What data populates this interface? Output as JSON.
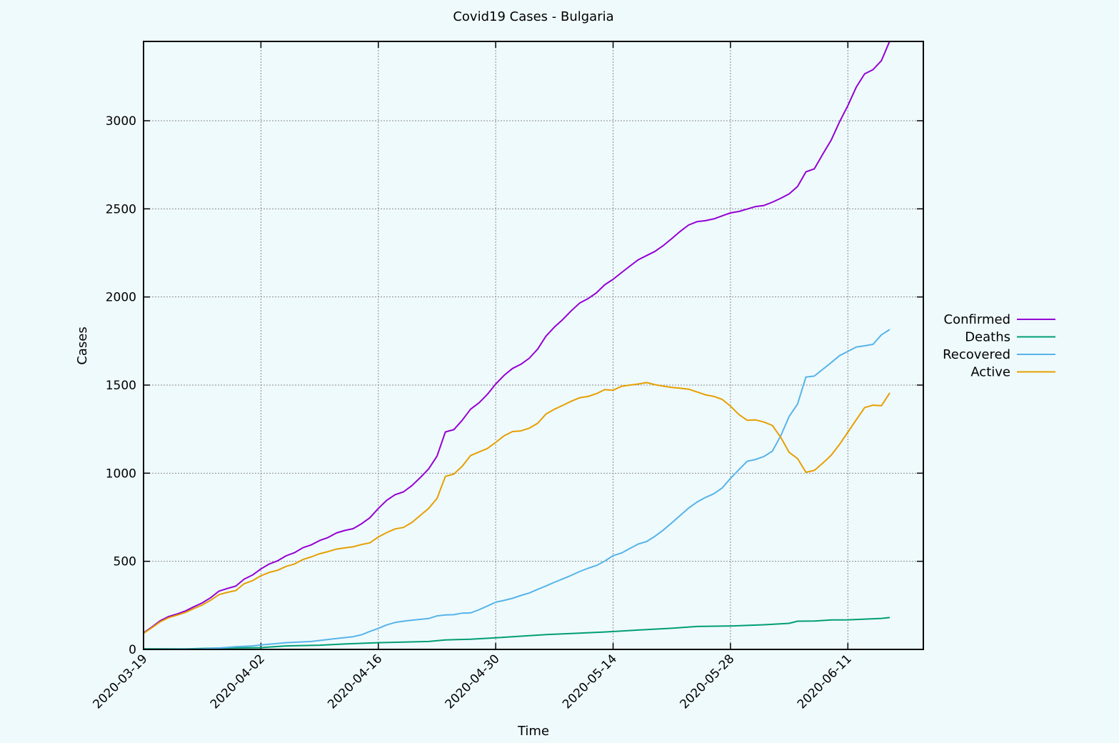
{
  "chart_data": {
    "type": "line",
    "title": "Covid19 Cases - Bulgaria",
    "xlabel": "Time",
    "ylabel": "Cases",
    "xlim": [
      "2020-03-19",
      "2020-06-20"
    ],
    "ylim": [
      0,
      3450
    ],
    "yticks": [
      0,
      500,
      1000,
      1500,
      2000,
      2500,
      3000
    ],
    "xticks": [
      "2020-03-19",
      "2020-04-02",
      "2020-04-16",
      "2020-04-30",
      "2020-05-14",
      "2020-05-28",
      "2020-06-11"
    ],
    "grid": true,
    "legend_position": "right",
    "series": [
      {
        "name": "Confirmed",
        "color": "#9400d3",
        "points": [
          [
            "2020-03-19",
            94
          ],
          [
            "2020-03-20",
            127
          ],
          [
            "2020-03-21",
            163
          ],
          [
            "2020-03-22",
            187
          ],
          [
            "2020-03-23",
            201
          ],
          [
            "2020-03-24",
            218
          ],
          [
            "2020-03-25",
            242
          ],
          [
            "2020-03-26",
            264
          ],
          [
            "2020-03-27",
            293
          ],
          [
            "2020-03-28",
            331
          ],
          [
            "2020-03-29",
            346
          ],
          [
            "2020-03-30",
            359
          ],
          [
            "2020-03-31",
            399
          ],
          [
            "2020-04-01",
            422
          ],
          [
            "2020-04-02",
            457
          ],
          [
            "2020-04-03",
            485
          ],
          [
            "2020-04-04",
            503
          ],
          [
            "2020-04-05",
            531
          ],
          [
            "2020-04-06",
            549
          ],
          [
            "2020-04-07",
            577
          ],
          [
            "2020-04-08",
            593
          ],
          [
            "2020-04-09",
            618
          ],
          [
            "2020-04-10",
            635
          ],
          [
            "2020-04-11",
            661
          ],
          [
            "2020-04-12",
            675
          ],
          [
            "2020-04-13",
            685
          ],
          [
            "2020-04-14",
            713
          ],
          [
            "2020-04-15",
            747
          ],
          [
            "2020-04-16",
            800
          ],
          [
            "2020-04-17",
            846
          ],
          [
            "2020-04-18",
            878
          ],
          [
            "2020-04-19",
            894
          ],
          [
            "2020-04-20",
            929
          ],
          [
            "2020-04-21",
            975
          ],
          [
            "2020-04-22",
            1024
          ],
          [
            "2020-04-23",
            1097
          ],
          [
            "2020-04-24",
            1234
          ],
          [
            "2020-04-25",
            1247
          ],
          [
            "2020-04-26",
            1300
          ],
          [
            "2020-04-27",
            1363
          ],
          [
            "2020-04-28",
            1399
          ],
          [
            "2020-04-29",
            1447
          ],
          [
            "2020-04-30",
            1506
          ],
          [
            "2020-05-01",
            1555
          ],
          [
            "2020-05-02",
            1594
          ],
          [
            "2020-05-03",
            1618
          ],
          [
            "2020-05-04",
            1652
          ],
          [
            "2020-05-05",
            1704
          ],
          [
            "2020-05-06",
            1778
          ],
          [
            "2020-05-07",
            1829
          ],
          [
            "2020-05-08",
            1872
          ],
          [
            "2020-05-09",
            1921
          ],
          [
            "2020-05-10",
            1965
          ],
          [
            "2020-05-11",
            1990
          ],
          [
            "2020-05-12",
            2023
          ],
          [
            "2020-05-13",
            2069
          ],
          [
            "2020-05-14",
            2100
          ],
          [
            "2020-05-15",
            2138
          ],
          [
            "2020-05-16",
            2175
          ],
          [
            "2020-05-17",
            2211
          ],
          [
            "2020-05-18",
            2235
          ],
          [
            "2020-05-19",
            2259
          ],
          [
            "2020-05-20",
            2292
          ],
          [
            "2020-05-21",
            2331
          ],
          [
            "2020-05-22",
            2372
          ],
          [
            "2020-05-23",
            2408
          ],
          [
            "2020-05-24",
            2427
          ],
          [
            "2020-05-25",
            2433
          ],
          [
            "2020-05-26",
            2443
          ],
          [
            "2020-05-27",
            2460
          ],
          [
            "2020-05-28",
            2477
          ],
          [
            "2020-05-29",
            2485
          ],
          [
            "2020-05-30",
            2499
          ],
          [
            "2020-05-31",
            2513
          ],
          [
            "2020-06-01",
            2519
          ],
          [
            "2020-06-02",
            2538
          ],
          [
            "2020-06-03",
            2560
          ],
          [
            "2020-06-04",
            2585
          ],
          [
            "2020-06-05",
            2627
          ],
          [
            "2020-06-06",
            2710
          ],
          [
            "2020-06-07",
            2727
          ],
          [
            "2020-06-08",
            2810
          ],
          [
            "2020-06-09",
            2889
          ],
          [
            "2020-06-10",
            2993
          ],
          [
            "2020-06-11",
            3086
          ],
          [
            "2020-06-12",
            3191
          ],
          [
            "2020-06-13",
            3266
          ],
          [
            "2020-06-14",
            3290
          ],
          [
            "2020-06-15",
            3341
          ],
          [
            "2020-06-16",
            3453
          ]
        ]
      },
      {
        "name": "Deaths",
        "color": "#009e73",
        "points": [
          [
            "2020-03-19",
            3
          ],
          [
            "2020-03-24",
            3
          ],
          [
            "2020-03-28",
            8
          ],
          [
            "2020-04-02",
            10
          ],
          [
            "2020-04-05",
            20
          ],
          [
            "2020-04-09",
            24
          ],
          [
            "2020-04-12",
            31
          ],
          [
            "2020-04-16",
            38
          ],
          [
            "2020-04-22",
            45
          ],
          [
            "2020-04-24",
            54
          ],
          [
            "2020-04-27",
            58
          ],
          [
            "2020-04-30",
            66
          ],
          [
            "2020-05-03",
            75
          ],
          [
            "2020-05-06",
            84
          ],
          [
            "2020-05-09",
            90
          ],
          [
            "2020-05-13",
            99
          ],
          [
            "2020-05-17",
            110
          ],
          [
            "2020-05-21",
            120
          ],
          [
            "2020-05-24",
            130
          ],
          [
            "2020-05-28",
            133
          ],
          [
            "2020-06-01",
            140
          ],
          [
            "2020-06-04",
            148
          ],
          [
            "2020-06-05",
            160
          ],
          [
            "2020-06-07",
            161
          ],
          [
            "2020-06-09",
            167
          ],
          [
            "2020-06-11",
            168
          ],
          [
            "2020-06-13",
            172
          ],
          [
            "2020-06-15",
            176
          ],
          [
            "2020-06-16",
            181
          ]
        ]
      },
      {
        "name": "Recovered",
        "color": "#56b4e9",
        "points": [
          [
            "2020-03-19",
            0
          ],
          [
            "2020-03-26",
            3
          ],
          [
            "2020-03-28",
            8
          ],
          [
            "2020-03-30",
            15
          ],
          [
            "2020-04-01",
            20
          ],
          [
            "2020-04-02",
            25
          ],
          [
            "2020-04-05",
            38
          ],
          [
            "2020-04-08",
            45
          ],
          [
            "2020-04-11",
            62
          ],
          [
            "2020-04-13",
            72
          ],
          [
            "2020-04-14",
            83
          ],
          [
            "2020-04-15",
            102
          ],
          [
            "2020-04-16",
            119
          ],
          [
            "2020-04-17",
            139
          ],
          [
            "2020-04-18",
            153
          ],
          [
            "2020-04-19",
            160
          ],
          [
            "2020-04-20",
            166
          ],
          [
            "2020-04-22",
            175
          ],
          [
            "2020-04-23",
            190
          ],
          [
            "2020-04-24",
            196
          ],
          [
            "2020-04-25",
            197
          ],
          [
            "2020-04-26",
            206
          ],
          [
            "2020-04-27",
            207
          ],
          [
            "2020-04-28",
            225
          ],
          [
            "2020-04-29",
            246
          ],
          [
            "2020-04-30",
            268
          ],
          [
            "2020-05-01",
            278
          ],
          [
            "2020-05-02",
            290
          ],
          [
            "2020-05-03",
            306
          ],
          [
            "2020-05-04",
            320
          ],
          [
            "2020-05-05",
            341
          ],
          [
            "2020-05-06",
            360
          ],
          [
            "2020-05-07",
            381
          ],
          [
            "2020-05-08",
            400
          ],
          [
            "2020-05-09",
            420
          ],
          [
            "2020-05-10",
            442
          ],
          [
            "2020-05-11",
            460
          ],
          [
            "2020-05-12",
            476
          ],
          [
            "2020-05-13",
            501
          ],
          [
            "2020-05-14",
            532
          ],
          [
            "2020-05-15",
            547
          ],
          [
            "2020-05-16",
            573
          ],
          [
            "2020-05-17",
            598
          ],
          [
            "2020-05-18",
            612
          ],
          [
            "2020-05-19",
            642
          ],
          [
            "2020-05-20",
            678
          ],
          [
            "2020-05-21",
            718
          ],
          [
            "2020-05-22",
            760
          ],
          [
            "2020-05-23",
            802
          ],
          [
            "2020-05-24",
            836
          ],
          [
            "2020-05-25",
            862
          ],
          [
            "2020-05-26",
            883
          ],
          [
            "2020-05-27",
            916
          ],
          [
            "2020-05-28",
            970
          ],
          [
            "2020-05-29",
            1020
          ],
          [
            "2020-05-30",
            1068
          ],
          [
            "2020-05-31",
            1078
          ],
          [
            "2020-06-01",
            1095
          ],
          [
            "2020-06-02",
            1125
          ],
          [
            "2020-06-03",
            1213
          ],
          [
            "2020-06-04",
            1322
          ],
          [
            "2020-06-05",
            1393
          ],
          [
            "2020-06-06",
            1546
          ],
          [
            "2020-06-07",
            1551
          ],
          [
            "2020-06-08",
            1589
          ],
          [
            "2020-06-09",
            1627
          ],
          [
            "2020-06-10",
            1667
          ],
          [
            "2020-06-11",
            1691
          ],
          [
            "2020-06-12",
            1716
          ],
          [
            "2020-06-13",
            1723
          ],
          [
            "2020-06-14",
            1731
          ],
          [
            "2020-06-15",
            1785
          ],
          [
            "2020-06-16",
            1816
          ]
        ]
      },
      {
        "name": "Active",
        "color": "#e69f00",
        "points": [
          [
            "2020-03-19",
            91
          ],
          [
            "2020-03-20",
            123
          ],
          [
            "2020-03-21",
            157
          ],
          [
            "2020-03-22",
            180
          ],
          [
            "2020-03-23",
            194
          ],
          [
            "2020-03-24",
            210
          ],
          [
            "2020-03-25",
            232
          ],
          [
            "2020-03-26",
            252
          ],
          [
            "2020-03-27",
            279
          ],
          [
            "2020-03-28",
            311
          ],
          [
            "2020-03-29",
            324
          ],
          [
            "2020-03-30",
            334
          ],
          [
            "2020-03-31",
            373
          ],
          [
            "2020-04-01",
            390
          ],
          [
            "2020-04-02",
            418
          ],
          [
            "2020-04-03",
            437
          ],
          [
            "2020-04-04",
            449
          ],
          [
            "2020-04-05",
            471
          ],
          [
            "2020-04-06",
            485
          ],
          [
            "2020-04-07",
            510
          ],
          [
            "2020-04-08",
            525
          ],
          [
            "2020-04-09",
            543
          ],
          [
            "2020-04-10",
            555
          ],
          [
            "2020-04-11",
            569
          ],
          [
            "2020-04-12",
            576
          ],
          [
            "2020-04-13",
            582
          ],
          [
            "2020-04-14",
            595
          ],
          [
            "2020-04-15",
            605
          ],
          [
            "2020-04-16",
            638
          ],
          [
            "2020-04-17",
            663
          ],
          [
            "2020-04-18",
            684
          ],
          [
            "2020-04-19",
            692
          ],
          [
            "2020-04-20",
            720
          ],
          [
            "2020-04-21",
            760
          ],
          [
            "2020-04-22",
            800
          ],
          [
            "2020-04-23",
            857
          ],
          [
            "2020-04-24",
            982
          ],
          [
            "2020-04-25",
            995
          ],
          [
            "2020-04-26",
            1039
          ],
          [
            "2020-04-27",
            1100
          ],
          [
            "2020-04-28",
            1120
          ],
          [
            "2020-04-29",
            1140
          ],
          [
            "2020-04-30",
            1175
          ],
          [
            "2020-05-01",
            1212
          ],
          [
            "2020-05-02",
            1236
          ],
          [
            "2020-05-03",
            1240
          ],
          [
            "2020-05-04",
            1255
          ],
          [
            "2020-05-05",
            1283
          ],
          [
            "2020-05-06",
            1336
          ],
          [
            "2020-05-07",
            1363
          ],
          [
            "2020-05-08",
            1385
          ],
          [
            "2020-05-09",
            1408
          ],
          [
            "2020-05-10",
            1428
          ],
          [
            "2020-05-11",
            1435
          ],
          [
            "2020-05-12",
            1451
          ],
          [
            "2020-05-13",
            1474
          ],
          [
            "2020-05-14",
            1471
          ],
          [
            "2020-05-15",
            1493
          ],
          [
            "2020-05-16",
            1500
          ],
          [
            "2020-05-17",
            1506
          ],
          [
            "2020-05-18",
            1514
          ],
          [
            "2020-05-19",
            1502
          ],
          [
            "2020-05-20",
            1494
          ],
          [
            "2020-05-21",
            1487
          ],
          [
            "2020-05-22",
            1482
          ],
          [
            "2020-05-23",
            1477
          ],
          [
            "2020-05-24",
            1461
          ],
          [
            "2020-05-25",
            1445
          ],
          [
            "2020-05-26",
            1436
          ],
          [
            "2020-05-27",
            1419
          ],
          [
            "2020-05-28",
            1381
          ],
          [
            "2020-05-29",
            1333
          ],
          [
            "2020-05-30",
            1300
          ],
          [
            "2020-05-31",
            1302
          ],
          [
            "2020-06-01",
            1290
          ],
          [
            "2020-06-02",
            1271
          ],
          [
            "2020-06-03",
            1203
          ],
          [
            "2020-06-04",
            1118
          ],
          [
            "2020-06-05",
            1083
          ],
          [
            "2020-06-06",
            1005
          ],
          [
            "2020-06-07",
            1016
          ],
          [
            "2020-06-08",
            1057
          ],
          [
            "2020-06-09",
            1101
          ],
          [
            "2020-06-10",
            1163
          ],
          [
            "2020-06-11",
            1233
          ],
          [
            "2020-06-12",
            1303
          ],
          [
            "2020-06-13",
            1372
          ],
          [
            "2020-06-14",
            1386
          ],
          [
            "2020-06-15",
            1383
          ],
          [
            "2020-06-16",
            1456
          ]
        ]
      }
    ]
  }
}
